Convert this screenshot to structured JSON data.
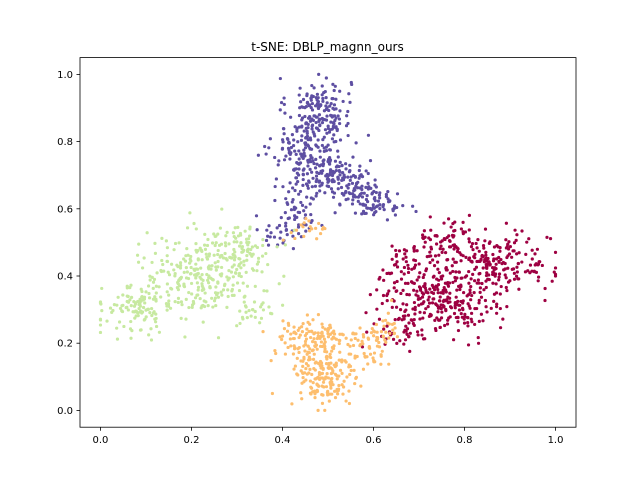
{
  "chart_data": {
    "type": "scatter",
    "title": "t-SNE: DBLP_magnn_ours",
    "xlabel": "",
    "ylabel": "",
    "xlim": [
      -0.045,
      1.045
    ],
    "ylim": [
      -0.05,
      1.05
    ],
    "xticks": [
      "0.0",
      "0.2",
      "0.4",
      "0.6",
      "0.8",
      "1.0"
    ],
    "xtick_values": [
      0.0,
      0.2,
      0.4,
      0.6,
      0.8,
      1.0
    ],
    "yticks": [
      "0.0",
      "0.2",
      "0.4",
      "0.6",
      "0.8",
      "1.0"
    ],
    "ytick_values": [
      0.0,
      0.2,
      0.4,
      0.6,
      0.8,
      1.0
    ],
    "grid": false,
    "legend": "none",
    "marker_radius_units": 1.6,
    "series": [
      {
        "color": "#5e4fa2",
        "clusters": [
          {
            "cx": 0.48,
            "cy": 0.9,
            "sx": 0.035,
            "sy": 0.045,
            "n": 140
          },
          {
            "cx": 0.46,
            "cy": 0.78,
            "sx": 0.04,
            "sy": 0.05,
            "n": 150
          },
          {
            "cx": 0.5,
            "cy": 0.7,
            "sx": 0.045,
            "sy": 0.04,
            "n": 120
          },
          {
            "cx": 0.57,
            "cy": 0.65,
            "sx": 0.035,
            "sy": 0.035,
            "n": 80
          },
          {
            "cx": 0.62,
            "cy": 0.61,
            "sx": 0.025,
            "sy": 0.02,
            "n": 40
          },
          {
            "cx": 0.43,
            "cy": 0.58,
            "sx": 0.03,
            "sy": 0.03,
            "n": 40
          },
          {
            "cx": 0.4,
            "cy": 0.53,
            "sx": 0.03,
            "sy": 0.02,
            "n": 25
          }
        ]
      },
      {
        "color": "#9e0142",
        "clusters": [
          {
            "cx": 0.72,
            "cy": 0.38,
            "sx": 0.055,
            "sy": 0.06,
            "n": 230
          },
          {
            "cx": 0.87,
            "cy": 0.43,
            "sx": 0.06,
            "sy": 0.045,
            "n": 200
          },
          {
            "cx": 0.78,
            "cy": 0.29,
            "sx": 0.05,
            "sy": 0.035,
            "n": 100
          },
          {
            "cx": 0.65,
            "cy": 0.24,
            "sx": 0.03,
            "sy": 0.03,
            "n": 40
          },
          {
            "cx": 0.77,
            "cy": 0.52,
            "sx": 0.04,
            "sy": 0.025,
            "n": 50
          }
        ]
      },
      {
        "color": "#c7e9a0",
        "clusters": [
          {
            "cx": 0.22,
            "cy": 0.4,
            "sx": 0.07,
            "sy": 0.06,
            "n": 260
          },
          {
            "cx": 0.08,
            "cy": 0.3,
            "sx": 0.04,
            "sy": 0.035,
            "n": 110
          },
          {
            "cx": 0.3,
            "cy": 0.48,
            "sx": 0.04,
            "sy": 0.04,
            "n": 80
          },
          {
            "cx": 0.33,
            "cy": 0.3,
            "sx": 0.03,
            "sy": 0.03,
            "n": 30
          }
        ]
      },
      {
        "color": "#fdbe6e",
        "clusters": [
          {
            "cx": 0.49,
            "cy": 0.1,
            "sx": 0.035,
            "sy": 0.05,
            "n": 160
          },
          {
            "cx": 0.46,
            "cy": 0.21,
            "sx": 0.045,
            "sy": 0.035,
            "n": 120
          },
          {
            "cx": 0.58,
            "cy": 0.18,
            "sx": 0.035,
            "sy": 0.03,
            "n": 60
          },
          {
            "cx": 0.62,
            "cy": 0.25,
            "sx": 0.02,
            "sy": 0.03,
            "n": 25
          },
          {
            "cx": 0.47,
            "cy": 0.54,
            "sx": 0.03,
            "sy": 0.02,
            "n": 20
          }
        ]
      }
    ]
  }
}
